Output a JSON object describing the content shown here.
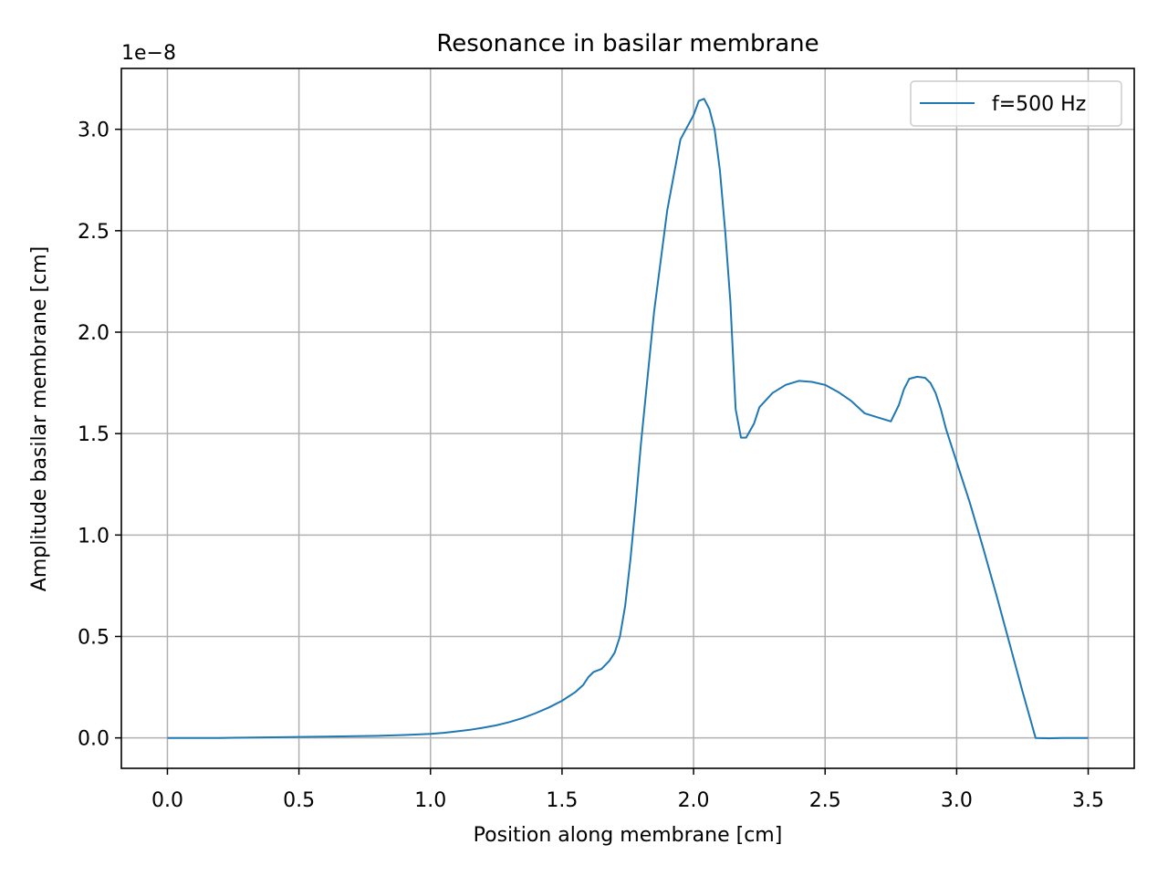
{
  "chart_data": {
    "type": "line",
    "title": "Resonance in basilar membrane",
    "xlabel": "Position along membrane [cm]",
    "ylabel": "Amplitude basilar membrane [cm]",
    "y_offset_label": "1e−8",
    "xlim": [
      -0.175,
      3.675
    ],
    "ylim": [
      -0.15,
      3.3
    ],
    "x_ticks": [
      0.0,
      0.5,
      1.0,
      1.5,
      2.0,
      2.5,
      3.0,
      3.5
    ],
    "x_tick_labels": [
      "0.0",
      "0.5",
      "1.0",
      "1.5",
      "2.0",
      "2.5",
      "3.0",
      "3.5"
    ],
    "y_ticks": [
      0.0,
      0.5,
      1.0,
      1.5,
      2.0,
      2.5,
      3.0
    ],
    "y_tick_labels": [
      "0.0",
      "0.5",
      "1.0",
      "1.5",
      "2.0",
      "2.5",
      "3.0"
    ],
    "grid": true,
    "legend_position": "top-right",
    "colors": {
      "series": "#1f77b4",
      "grid": "#b0b0b0",
      "axes": "#000000",
      "legend_border": "#cccccc"
    },
    "series": [
      {
        "name": "f=500 Hz",
        "x": [
          0.0,
          0.2,
          0.4,
          0.6,
          0.8,
          0.9,
          1.0,
          1.05,
          1.1,
          1.15,
          1.2,
          1.25,
          1.3,
          1.35,
          1.4,
          1.45,
          1.5,
          1.55,
          1.58,
          1.6,
          1.62,
          1.65,
          1.68,
          1.7,
          1.72,
          1.74,
          1.76,
          1.78,
          1.8,
          1.85,
          1.9,
          1.95,
          2.0,
          2.02,
          2.04,
          2.06,
          2.08,
          2.1,
          2.12,
          2.14,
          2.16,
          2.18,
          2.2,
          2.23,
          2.25,
          2.3,
          2.35,
          2.4,
          2.45,
          2.5,
          2.55,
          2.6,
          2.65,
          2.7,
          2.75,
          2.78,
          2.8,
          2.82,
          2.85,
          2.88,
          2.9,
          2.92,
          2.94,
          2.96,
          3.0,
          3.05,
          3.1,
          3.15,
          3.2,
          3.25,
          3.3,
          3.35,
          3.4,
          3.45,
          3.5
        ],
        "values": [
          0.0,
          0.0,
          0.003,
          0.006,
          0.01,
          0.014,
          0.02,
          0.025,
          0.032,
          0.04,
          0.05,
          0.062,
          0.078,
          0.098,
          0.122,
          0.15,
          0.183,
          0.225,
          0.26,
          0.3,
          0.325,
          0.34,
          0.38,
          0.42,
          0.5,
          0.65,
          0.88,
          1.15,
          1.45,
          2.1,
          2.6,
          2.95,
          3.07,
          3.14,
          3.15,
          3.1,
          3.0,
          2.8,
          2.5,
          2.15,
          1.62,
          1.48,
          1.48,
          1.55,
          1.63,
          1.7,
          1.74,
          1.76,
          1.755,
          1.74,
          1.705,
          1.66,
          1.6,
          1.58,
          1.56,
          1.64,
          1.72,
          1.77,
          1.78,
          1.775,
          1.75,
          1.7,
          1.62,
          1.52,
          1.36,
          1.16,
          0.94,
          0.71,
          0.47,
          0.23,
          0.0,
          -0.002,
          0.0,
          0.0,
          0.0
        ]
      }
    ]
  }
}
